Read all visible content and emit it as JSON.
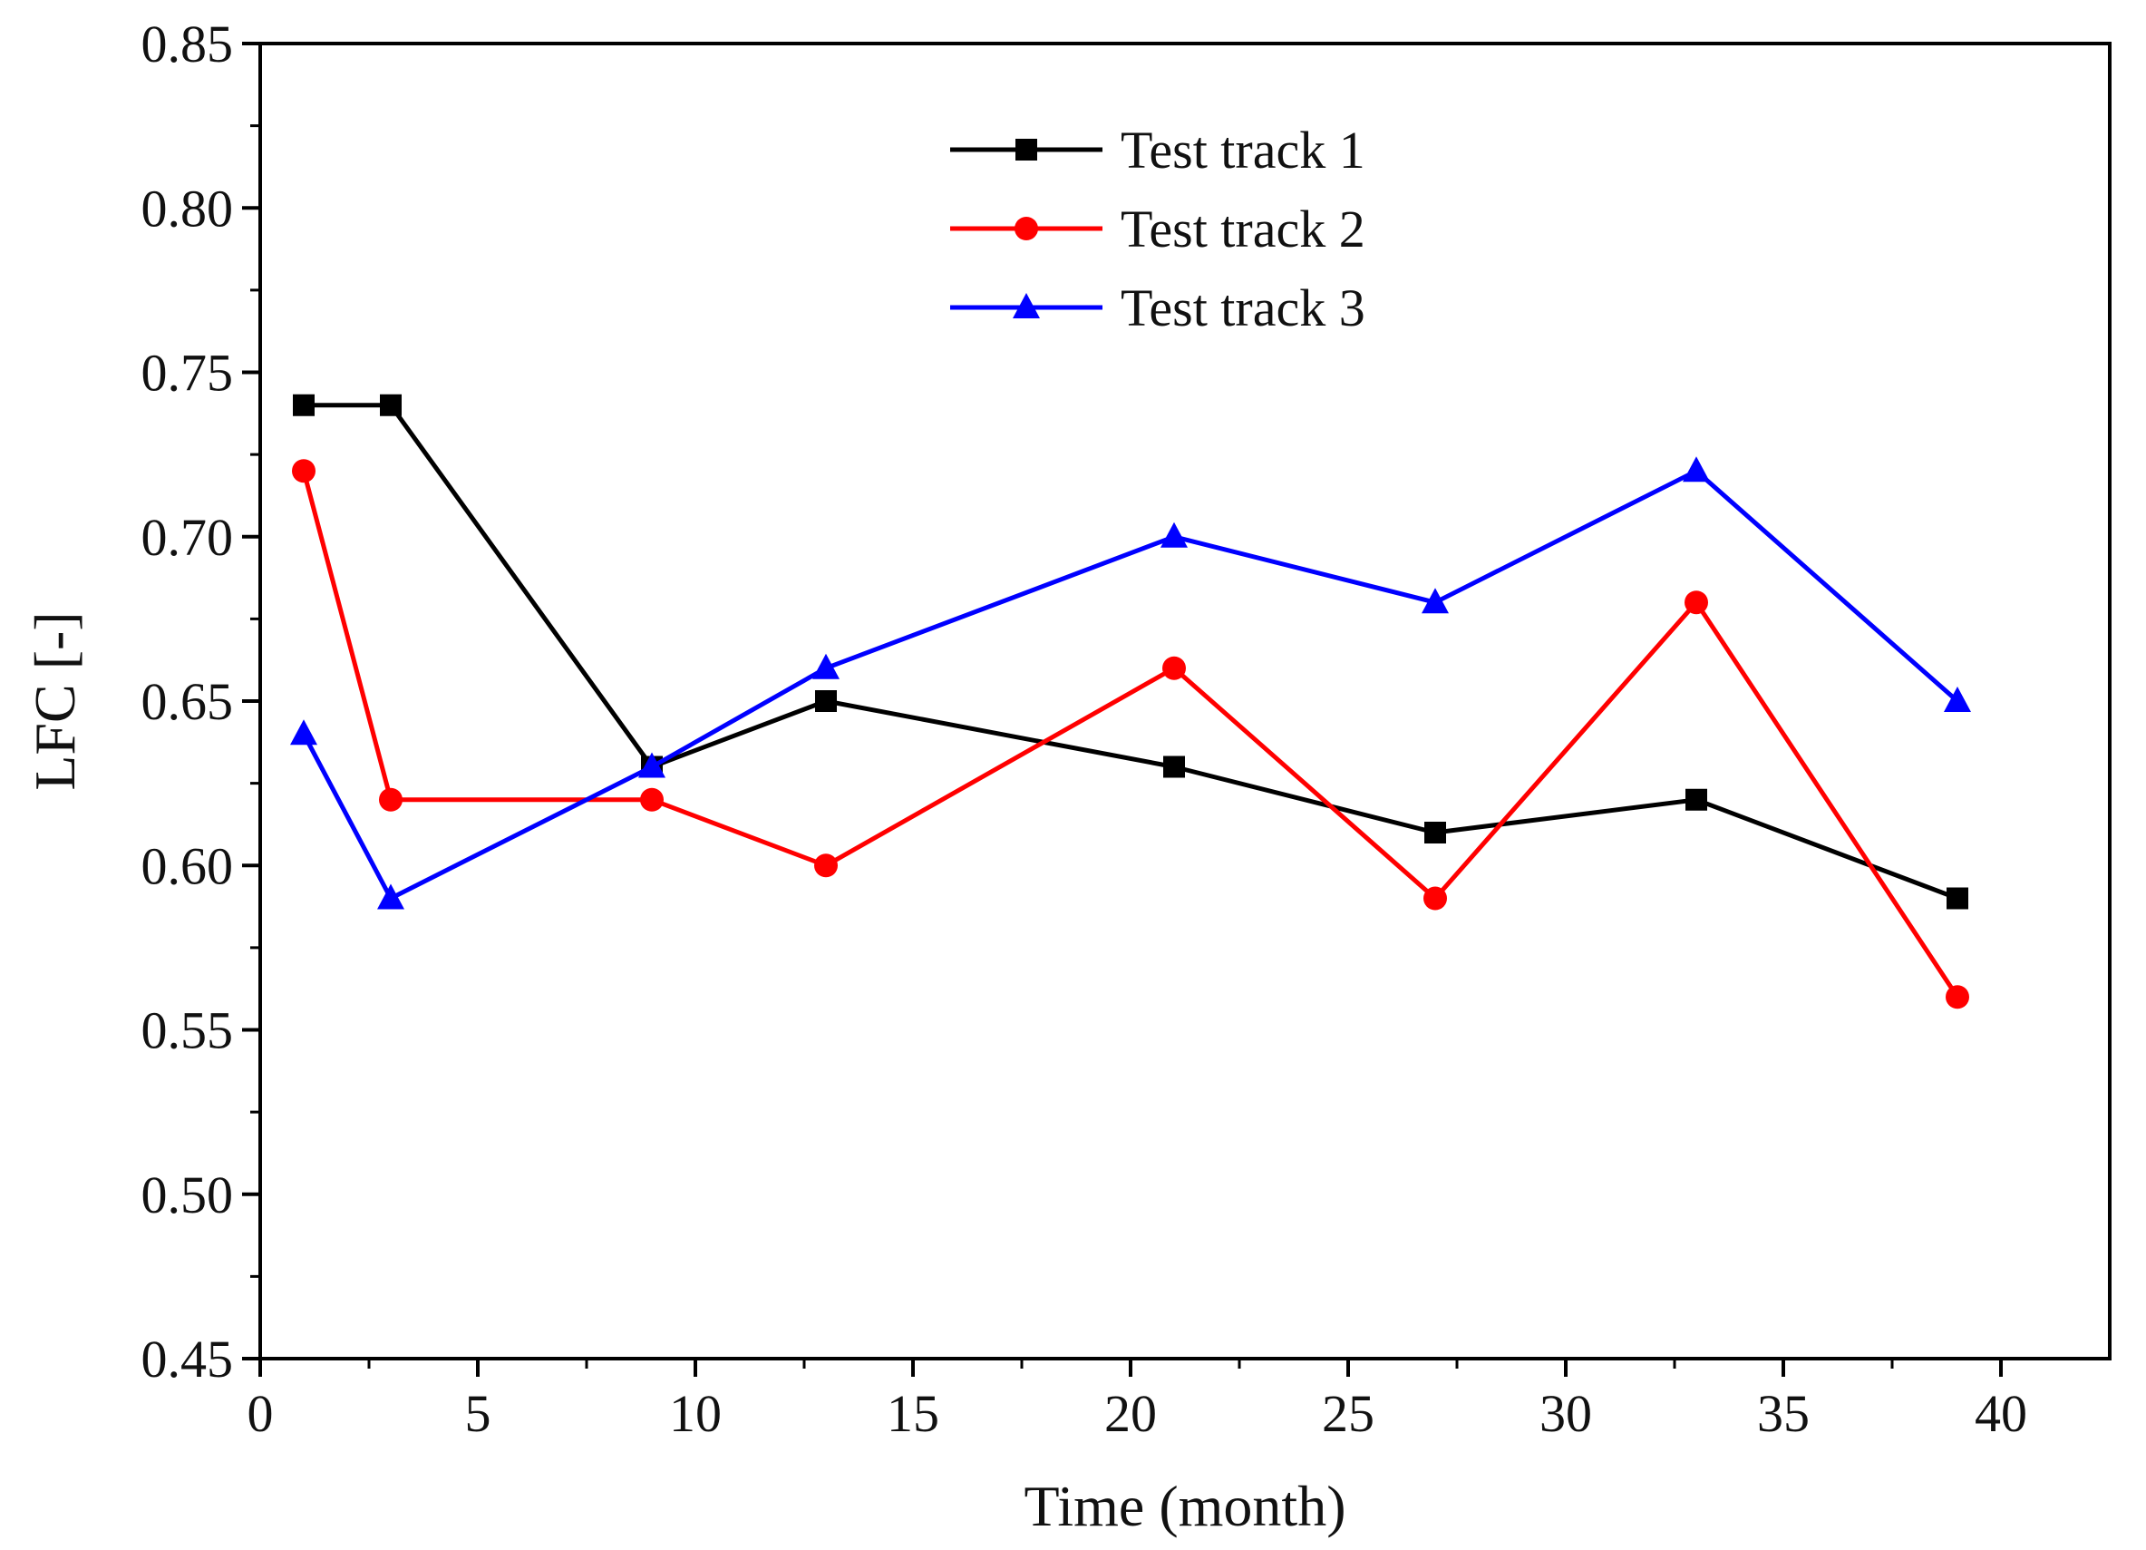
{
  "chart_data": {
    "type": "line",
    "title": "",
    "xlabel": "Time (month)",
    "ylabel": "LFC [-]",
    "xlim": [
      0,
      42.5
    ],
    "ylim": [
      0.45,
      0.85
    ],
    "xticks": [
      0,
      5,
      10,
      15,
      20,
      25,
      30,
      35,
      40
    ],
    "xtick_labels": [
      "0",
      "5",
      "10",
      "15",
      "20",
      "25",
      "30",
      "35",
      "40"
    ],
    "yticks": [
      0.45,
      0.5,
      0.55,
      0.6,
      0.65,
      0.7,
      0.75,
      0.8,
      0.85
    ],
    "ytick_labels": [
      "0.45",
      "0.50",
      "0.55",
      "0.60",
      "0.65",
      "0.70",
      "0.75",
      "0.80",
      "0.85"
    ],
    "grid": false,
    "legend_position": "top-center",
    "x": [
      1,
      3,
      9,
      13,
      21,
      27,
      33,
      39
    ],
    "series": [
      {
        "name": "Test track 1",
        "color": "#000000",
        "marker": "square",
        "values": [
          0.74,
          0.74,
          0.63,
          0.65,
          0.63,
          0.61,
          0.62,
          0.59
        ]
      },
      {
        "name": "Test track 2",
        "color": "#ff0000",
        "marker": "circle",
        "values": [
          0.72,
          0.62,
          0.62,
          0.6,
          0.66,
          0.59,
          0.68,
          0.56
        ]
      },
      {
        "name": "Test track 3",
        "color": "#0000ff",
        "marker": "triangle",
        "values": [
          0.64,
          0.59,
          0.63,
          0.66,
          0.7,
          0.68,
          0.72,
          0.65
        ]
      }
    ]
  }
}
